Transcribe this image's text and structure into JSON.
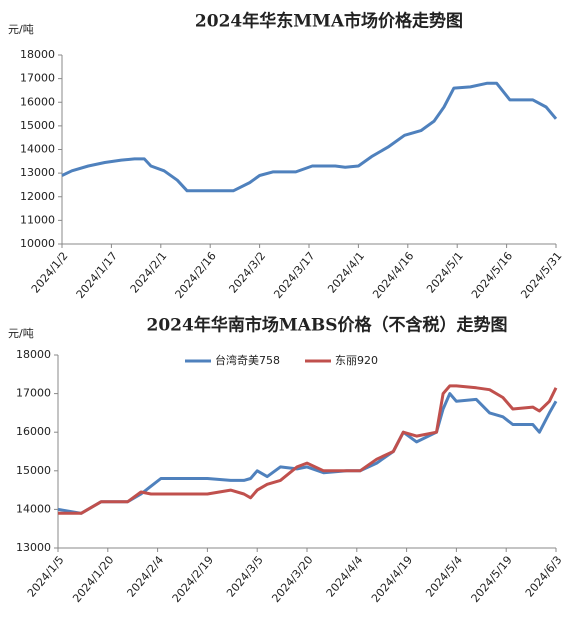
{
  "chart_data": [
    {
      "type": "line",
      "title": "2024年华东MMA市场价格走势图",
      "y_label": "元/吨",
      "x": [
        "2024/1/2",
        "2024/1/5",
        "2024/1/10",
        "2024/1/15",
        "2024/1/20",
        "2024/1/24",
        "2024/1/27",
        "2024/1/29",
        "2024/2/2",
        "2024/2/6",
        "2024/2/9",
        "2024/2/16",
        "2024/2/23",
        "2024/2/28",
        "2024/3/2",
        "2024/3/6",
        "2024/3/13",
        "2024/3/18",
        "2024/3/25",
        "2024/3/28",
        "2024/4/1",
        "2024/4/5",
        "2024/4/10",
        "2024/4/15",
        "2024/4/20",
        "2024/4/24",
        "2024/4/27",
        "2024/4/30",
        "2024/5/5",
        "2024/5/10",
        "2024/5/13",
        "2024/5/17",
        "2024/5/24",
        "2024/5/28",
        "2024/5/31"
      ],
      "series": [
        {
          "color": "#4f81bd",
          "values": [
            12900,
            13100,
            13300,
            13450,
            13550,
            13600,
            13600,
            13300,
            13100,
            12700,
            12250,
            12250,
            12250,
            12600,
            12900,
            13050,
            13050,
            13300,
            13300,
            13250,
            13300,
            13700,
            14100,
            14600,
            14800,
            15200,
            15800,
            16600,
            16650,
            16800,
            16800,
            16100,
            16100,
            15800,
            15300
          ]
        }
      ],
      "xlim": [
        "2024/1/2",
        "2024/5/31"
      ],
      "xticks": [
        "2024/1/2",
        "2024/1/17",
        "2024/2/1",
        "2024/2/16",
        "2024/3/2",
        "2024/3/17",
        "2024/4/1",
        "2024/4/16",
        "2024/5/1",
        "2024/5/16",
        "2024/5/31"
      ],
      "ylim": [
        10000,
        18000
      ],
      "yticks": [
        10000,
        11000,
        12000,
        13000,
        14000,
        15000,
        16000,
        17000,
        18000
      ]
    },
    {
      "type": "line",
      "title": "2024年华南市场MABS价格（不含税）走势图",
      "y_label": "元/吨",
      "x": [
        "2024/1/5",
        "2024/1/12",
        "2024/1/18",
        "2024/1/26",
        "2024/1/30",
        "2024/2/2",
        "2024/2/5",
        "2024/2/19",
        "2024/2/26",
        "2024/3/1",
        "2024/3/3",
        "2024/3/5",
        "2024/3/8",
        "2024/3/12",
        "2024/3/17",
        "2024/3/20",
        "2024/3/25",
        "2024/4/1",
        "2024/4/5",
        "2024/4/10",
        "2024/4/15",
        "2024/4/18",
        "2024/4/22",
        "2024/4/28",
        "2024/4/30",
        "2024/5/2",
        "2024/5/4",
        "2024/5/10",
        "2024/5/14",
        "2024/5/18",
        "2024/5/21",
        "2024/5/27",
        "2024/5/29",
        "2024/6/1",
        "2024/6/3"
      ],
      "series": [
        {
          "name": "台湾奇美758",
          "color": "#4f81bd",
          "values": [
            14000,
            13900,
            14200,
            14200,
            14400,
            14600,
            14800,
            14800,
            14750,
            14750,
            14800,
            15000,
            14850,
            15100,
            15050,
            15100,
            14950,
            15000,
            15000,
            15200,
            15500,
            16000,
            15750,
            16000,
            16600,
            17000,
            16800,
            16850,
            16500,
            16400,
            16200,
            16200,
            16000,
            16500,
            16800
          ]
        },
        {
          "name": "东丽920",
          "color": "#c0504d",
          "values": [
            13900,
            13900,
            14200,
            14200,
            14450,
            14400,
            14400,
            14400,
            14500,
            14400,
            14300,
            14500,
            14650,
            14750,
            15100,
            15200,
            15000,
            15000,
            15000,
            15300,
            15500,
            16000,
            15900,
            16000,
            17000,
            17200,
            17200,
            17150,
            17100,
            16900,
            16600,
            16650,
            16550,
            16800,
            17150
          ]
        }
      ],
      "xlim": [
        "2024/1/5",
        "2024/6/3"
      ],
      "xticks": [
        "2024/1/5",
        "2024/1/20",
        "2024/2/4",
        "2024/2/19",
        "2024/3/5",
        "2024/3/20",
        "2024/4/4",
        "2024/4/19",
        "2024/5/4",
        "2024/5/19",
        "2024/6/3"
      ],
      "ylim": [
        13000,
        18000
      ],
      "yticks": [
        13000,
        14000,
        15000,
        16000,
        17000,
        18000
      ],
      "legend": "top"
    }
  ]
}
